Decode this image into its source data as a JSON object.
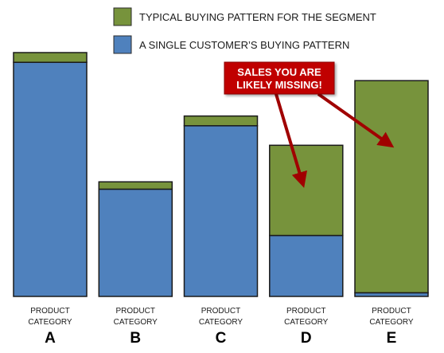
{
  "chart_data": {
    "type": "bar",
    "stacked": true,
    "categories": [
      "A",
      "B",
      "C",
      "D",
      "E"
    ],
    "category_prefix": [
      "PRODUCT",
      "CATEGORY"
    ],
    "series": [
      {
        "name": "A SINGLE CUSTOMER’S BUYING PATTERN",
        "color": "#4f81bd",
        "values": [
          96,
          44,
          70,
          25,
          1.5
        ]
      },
      {
        "name": "TYPICAL BUYING PATTERN FOR THE SEGMENT",
        "color": "#77933c",
        "values": [
          4,
          3,
          4,
          37,
          87
        ]
      }
    ],
    "ylim": [
      0,
      100
    ],
    "grid": false,
    "legend_position": "top-right",
    "title": "",
    "xlabel": "",
    "ylabel": "",
    "annotation": {
      "lines": [
        "SALES YOU ARE",
        "LIKELY MISSING!"
      ],
      "background": "#c00000",
      "text_color": "#ffffff",
      "arrow_color": "#a00000",
      "points_to": [
        "D",
        "E"
      ]
    }
  }
}
